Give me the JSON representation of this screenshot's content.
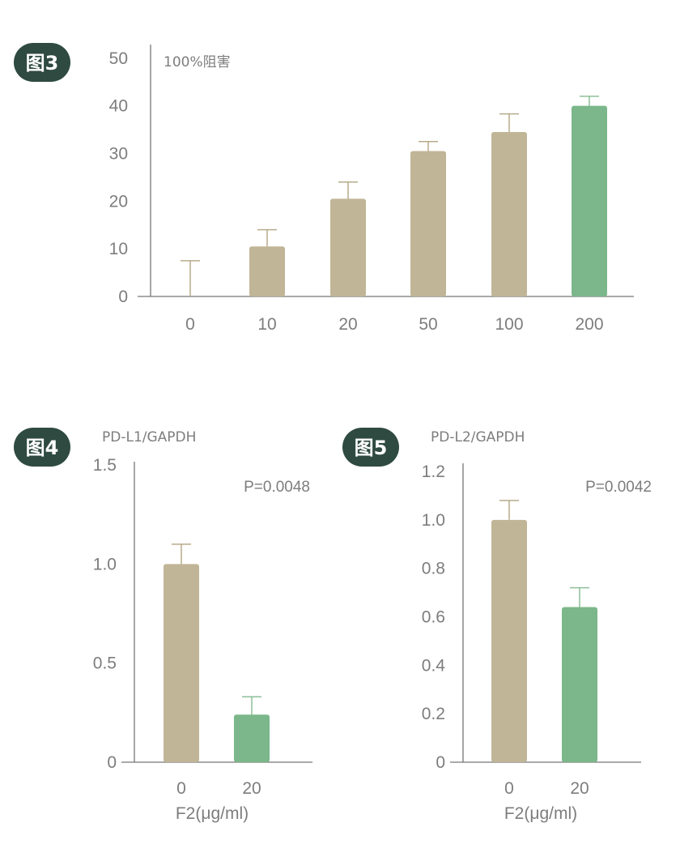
{
  "colors": {
    "badge": "#2f4a41",
    "beige": "#c0b596",
    "green": "#7bb78a",
    "axis": "#777777",
    "err_beige": "#b7ab8a",
    "err_green": "#8cbf98"
  },
  "chart_data": [
    {
      "type": "bar",
      "badge": "图3",
      "title": "",
      "ylabel": "100%阻害",
      "xlabel": "",
      "categories": [
        "0",
        "10",
        "20",
        "50",
        "100",
        "200"
      ],
      "values": [
        0,
        10.5,
        20.5,
        30.5,
        34.5,
        40
      ],
      "errors": [
        7.5,
        3.5,
        3.5,
        2,
        3.8,
        2
      ],
      "highlight": [
        false,
        false,
        false,
        false,
        false,
        true
      ],
      "ylim": [
        0,
        52
      ],
      "yticks": [
        "0",
        "10",
        "20",
        "30",
        "40",
        "50"
      ],
      "ytick_values": [
        0,
        10,
        20,
        30,
        40,
        50
      ],
      "grid": false
    },
    {
      "type": "bar",
      "badge": "图4",
      "title": "",
      "ylabel": "PD-L1/GAPDH",
      "xlabel": "F2(μg/ml)",
      "annotation": "P=0.0048",
      "categories": [
        "0",
        "20"
      ],
      "values": [
        1.0,
        0.24
      ],
      "errors": [
        0.1,
        0.09
      ],
      "highlight": [
        false,
        true
      ],
      "ylim": [
        0,
        1.5
      ],
      "yticks": [
        "0",
        "0.5",
        "1.0",
        "1.5"
      ],
      "ytick_values": [
        0,
        0.5,
        1.0,
        1.5
      ],
      "grid": false
    },
    {
      "type": "bar",
      "badge": "图5",
      "title": "",
      "ylabel": "PD-L2/GAPDH",
      "xlabel": "F2(μg/ml)",
      "annotation": "P=0.0042",
      "categories": [
        "0",
        "20"
      ],
      "values": [
        1.0,
        0.64
      ],
      "errors": [
        0.08,
        0.08
      ],
      "highlight": [
        false,
        true
      ],
      "ylim": [
        0,
        1.2
      ],
      "yticks": [
        "0",
        "0.2",
        "0.4",
        "0.6",
        "0.8",
        "1.0",
        "1.2"
      ],
      "ytick_values": [
        0,
        0.2,
        0.4,
        0.6,
        0.8,
        1.0,
        1.2
      ],
      "grid": false
    }
  ]
}
